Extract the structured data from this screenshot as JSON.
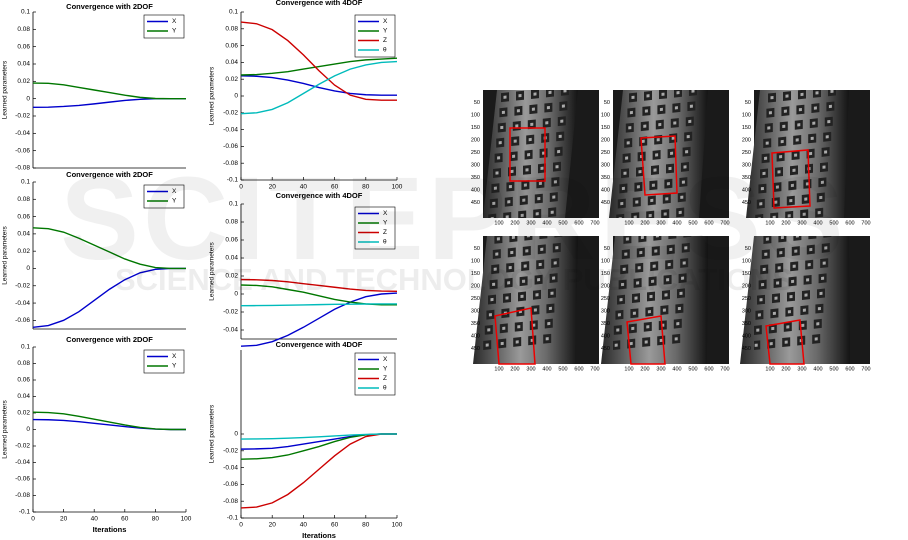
{
  "chart_data": [
    {
      "type": "line",
      "title": "Convergence with 2DOF",
      "ylabel": "Learned parameters",
      "legend": "upper right",
      "x": [
        0,
        10,
        20,
        30,
        40,
        50,
        60,
        70,
        80,
        90,
        100
      ],
      "xlim": [
        0,
        100
      ],
      "ylim": [
        -0.08,
        0.1
      ],
      "yticks": [
        -0.08,
        -0.06,
        -0.04,
        -0.02,
        0,
        0.02,
        0.04,
        0.06,
        0.08,
        0.1
      ],
      "series": [
        {
          "name": "X",
          "color": "#0000cc",
          "values": [
            -0.01,
            -0.0098,
            -0.009,
            -0.0078,
            -0.006,
            -0.004,
            -0.002,
            -0.0008,
            0,
            0,
            0
          ]
        },
        {
          "name": "Y",
          "color": "#007700",
          "values": [
            0.018,
            0.0177,
            0.016,
            0.013,
            0.01,
            0.007,
            0.004,
            0.0015,
            0.0002,
            0,
            0
          ]
        }
      ]
    },
    {
      "type": "line",
      "title": "Convergence with 2DOF",
      "ylabel": "Learned parameters",
      "legend": "upper right",
      "x": [
        0,
        10,
        20,
        30,
        40,
        50,
        60,
        70,
        80,
        90,
        100
      ],
      "xlim": [
        0,
        100
      ],
      "ylim": [
        -0.07,
        0.1
      ],
      "yticks": [
        -0.06,
        -0.04,
        -0.02,
        0,
        0.02,
        0.04,
        0.06,
        0.08,
        0.1
      ],
      "series": [
        {
          "name": "X",
          "color": "#0000cc",
          "values": [
            -0.068,
            -0.066,
            -0.06,
            -0.05,
            -0.037,
            -0.024,
            -0.013,
            -0.005,
            -0.001,
            0,
            0
          ]
        },
        {
          "name": "Y",
          "color": "#007700",
          "values": [
            0.047,
            0.046,
            0.042,
            0.035,
            0.027,
            0.019,
            0.011,
            0.005,
            0.001,
            0,
            0
          ]
        }
      ]
    },
    {
      "type": "line",
      "title": "Convergence with 2DOF",
      "ylabel": "Learned parameters",
      "xlabel": "Iterations",
      "legend": "upper right",
      "x": [
        0,
        10,
        20,
        30,
        40,
        50,
        60,
        70,
        80,
        90,
        100
      ],
      "xlim": [
        0,
        100
      ],
      "xticks": [
        0,
        20,
        40,
        60,
        80,
        100
      ],
      "ylim": [
        -0.1,
        0.1
      ],
      "yticks": [
        -0.1,
        -0.08,
        -0.06,
        -0.04,
        -0.02,
        0,
        0.02,
        0.04,
        0.06,
        0.08,
        0.1
      ],
      "series": [
        {
          "name": "X",
          "color": "#0000cc",
          "values": [
            0.012,
            0.0118,
            0.011,
            0.0095,
            0.0075,
            0.0055,
            0.0035,
            0.0018,
            0.0005,
            0,
            0
          ]
        },
        {
          "name": "Y",
          "color": "#007700",
          "values": [
            0.021,
            0.0205,
            0.019,
            0.016,
            0.0125,
            0.009,
            0.0055,
            0.0025,
            0.0007,
            0,
            0
          ]
        }
      ]
    },
    {
      "type": "line",
      "title": "Convergence with 4DOF",
      "ylabel": "Learned parameters",
      "legend": "upper right",
      "x": [
        0,
        10,
        20,
        30,
        40,
        50,
        60,
        70,
        80,
        90,
        100
      ],
      "xlim": [
        0,
        100
      ],
      "xticks": [
        0,
        20,
        40,
        60,
        80,
        100
      ],
      "ylim": [
        -0.1,
        0.1
      ],
      "yticks": [
        -0.1,
        -0.08,
        -0.06,
        -0.04,
        -0.02,
        0,
        0.02,
        0.04,
        0.06,
        0.08,
        0.1
      ],
      "series": [
        {
          "name": "X",
          "color": "#0000cc",
          "values": [
            0.024,
            0.0235,
            0.022,
            0.019,
            0.015,
            0.01,
            0.006,
            0.003,
            0.0015,
            0.001,
            0.001
          ]
        },
        {
          "name": "Y",
          "color": "#007700",
          "values": [
            0.025,
            0.0255,
            0.027,
            0.029,
            0.032,
            0.035,
            0.038,
            0.041,
            0.043,
            0.044,
            0.045
          ]
        },
        {
          "name": "Z",
          "color": "#cc0000",
          "values": [
            0.088,
            0.086,
            0.079,
            0.066,
            0.049,
            0.03,
            0.013,
            0.001,
            -0.004,
            -0.005,
            -0.005
          ]
        },
        {
          "name": "θ",
          "color": "#00bbbb",
          "values": [
            -0.021,
            -0.02,
            -0.016,
            -0.008,
            0.003,
            0.014,
            0.024,
            0.032,
            0.037,
            0.04,
            0.041
          ]
        }
      ]
    },
    {
      "type": "line",
      "title": "Convergence with 4DOF",
      "ylabel": "Learned parameters",
      "legend": "upper right",
      "x": [
        0,
        10,
        20,
        30,
        40,
        50,
        60,
        70,
        80,
        90,
        100
      ],
      "xlim": [
        0,
        100
      ],
      "ylim": [
        -0.05,
        0.1
      ],
      "yticks": [
        -0.04,
        -0.02,
        0,
        0.02,
        0.04,
        0.06,
        0.08,
        0.1
      ],
      "series": [
        {
          "name": "X",
          "color": "#0000cc",
          "values": [
            -0.058,
            -0.057,
            -0.053,
            -0.046,
            -0.037,
            -0.027,
            -0.017,
            -0.009,
            -0.003,
            0,
            0.001
          ]
        },
        {
          "name": "Y",
          "color": "#007700",
          "values": [
            0.01,
            0.0095,
            0.008,
            0.005,
            0.002,
            -0.002,
            -0.006,
            -0.009,
            -0.011,
            -0.012,
            -0.012
          ]
        },
        {
          "name": "Z",
          "color": "#cc0000",
          "values": [
            0.016,
            0.0158,
            0.015,
            0.0135,
            0.0115,
            0.0095,
            0.0075,
            0.0055,
            0.004,
            0.0033,
            0.003
          ]
        },
        {
          "name": "θ",
          "color": "#00bbbb",
          "values": [
            -0.013,
            -0.0129,
            -0.0127,
            -0.0124,
            -0.0121,
            -0.0118,
            -0.0115,
            -0.0113,
            -0.0111,
            -0.011,
            -0.011
          ]
        }
      ]
    },
    {
      "type": "line",
      "title": "Convergence with 4DOF",
      "ylabel": "Learned parameters",
      "xlabel": "Iterations",
      "legend": "upper right",
      "x": [
        0,
        10,
        20,
        30,
        40,
        50,
        60,
        70,
        80,
        90,
        100
      ],
      "xlim": [
        0,
        100
      ],
      "xticks": [
        0,
        20,
        40,
        60,
        80,
        100
      ],
      "ylim": [
        -0.1,
        0.1
      ],
      "yticks": [
        -0.1,
        -0.08,
        -0.06,
        -0.04,
        -0.02,
        0
      ],
      "series": [
        {
          "name": "X",
          "color": "#0000cc",
          "values": [
            -0.018,
            -0.0177,
            -0.017,
            -0.015,
            -0.012,
            -0.009,
            -0.006,
            -0.003,
            -0.001,
            0,
            0
          ]
        },
        {
          "name": "Y",
          "color": "#007700",
          "values": [
            -0.03,
            -0.0295,
            -0.028,
            -0.025,
            -0.02,
            -0.015,
            -0.009,
            -0.004,
            -0.001,
            0,
            0
          ]
        },
        {
          "name": "Z",
          "color": "#cc0000",
          "values": [
            -0.088,
            -0.087,
            -0.082,
            -0.072,
            -0.058,
            -0.042,
            -0.026,
            -0.012,
            -0.003,
            0,
            0
          ]
        },
        {
          "name": "θ",
          "color": "#00bbbb",
          "values": [
            -0.006,
            -0.0059,
            -0.0056,
            -0.005,
            -0.0042,
            -0.0033,
            -0.0023,
            -0.0013,
            -0.0005,
            0,
            0
          ]
        }
      ]
    }
  ],
  "images": {
    "xticks": [
      100,
      200,
      300,
      400,
      500,
      600,
      700
    ],
    "yticks": [
      50,
      100,
      150,
      200,
      250,
      300,
      350,
      400,
      450
    ]
  },
  "watermark": {
    "title": "SCITEPRESS",
    "subtitle": "SCIENCE AND TECHNOLOGY PUBLICATIONS"
  }
}
